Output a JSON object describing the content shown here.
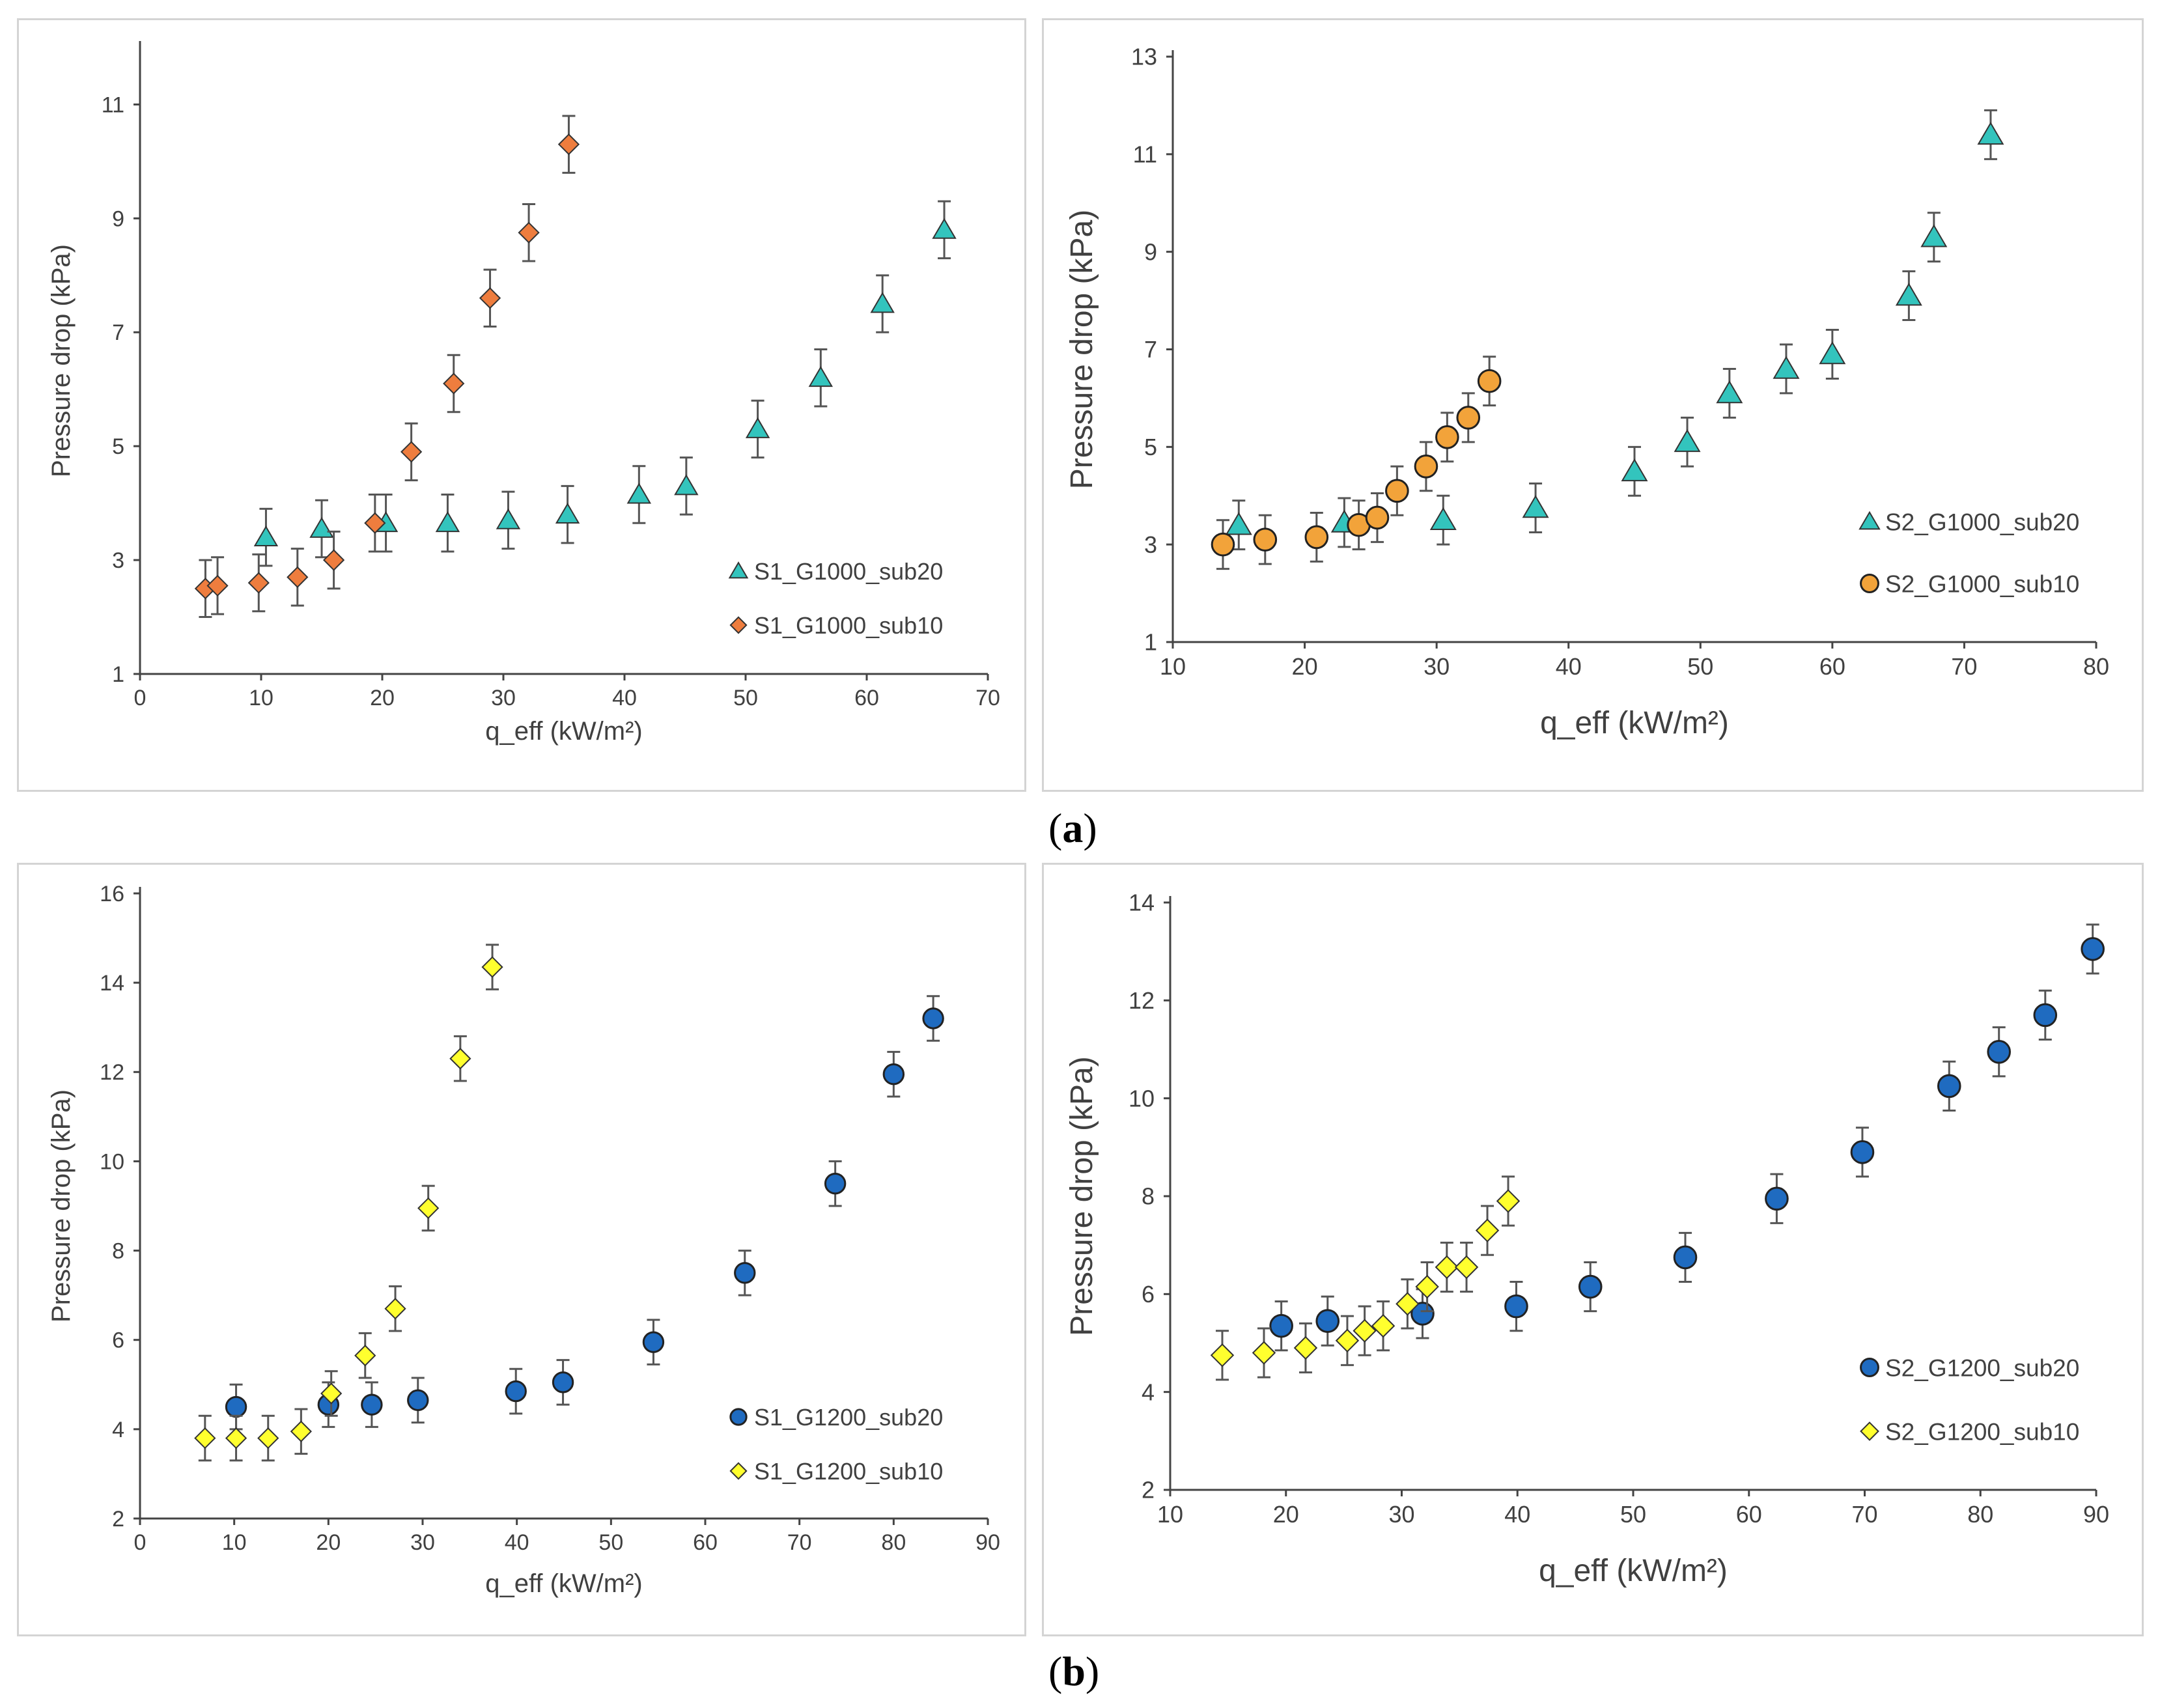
{
  "panel_labels": {
    "a": "a",
    "b": "b"
  },
  "chart_data": [
    {
      "id": "a-left",
      "type": "scatter",
      "title": "",
      "xlabel": "q_eff (kW/m²)",
      "ylabel": "Pressure drop (kPa)",
      "xlim": [
        0,
        70
      ],
      "xticks": [
        0,
        10,
        20,
        30,
        40,
        50,
        60,
        70
      ],
      "ylim": [
        1,
        12
      ],
      "yticks": [
        1,
        3,
        5,
        7,
        9,
        11
      ],
      "legend_position": "bottom-right",
      "series": [
        {
          "name": "S1_G1000_sub20",
          "marker": "triangle",
          "color": "#33c4bd",
          "x": [
            10.4,
            15.0,
            20.3,
            25.4,
            30.4,
            35.3,
            41.2,
            45.1,
            51.0,
            56.2,
            61.3,
            66.4
          ],
          "y": [
            3.4,
            3.55,
            3.65,
            3.65,
            3.7,
            3.8,
            4.15,
            4.3,
            5.3,
            6.2,
            7.5,
            8.8
          ]
        },
        {
          "name": "S1_G1000_sub10",
          "marker": "diamond",
          "color": "#ee7d3e",
          "x": [
            5.4,
            6.4,
            9.8,
            13.0,
            16.0,
            19.4,
            22.4,
            25.9,
            28.9,
            32.1,
            35.4
          ],
          "y": [
            2.5,
            2.55,
            2.6,
            2.7,
            3.0,
            3.65,
            4.9,
            6.1,
            7.6,
            8.75,
            10.3
          ]
        }
      ]
    },
    {
      "id": "a-right",
      "type": "scatter",
      "title": "",
      "xlabel": "q_eff (kW/m²)",
      "ylabel": "Pressure drop (kPa)",
      "xlim": [
        10,
        80
      ],
      "xticks": [
        10,
        20,
        30,
        40,
        50,
        60,
        70,
        80
      ],
      "ylim": [
        1,
        13
      ],
      "yticks": [
        1,
        3,
        5,
        7,
        9,
        11,
        13
      ],
      "legend_position": "bottom-right",
      "series": [
        {
          "name": "S2_G1000_sub20",
          "marker": "triangle",
          "color": "#33c4bd",
          "x": [
            15.0,
            23.0,
            30.5,
            37.5,
            45.0,
            49.0,
            52.2,
            56.5,
            60.0,
            65.8,
            67.7,
            72.0
          ],
          "y": [
            3.4,
            3.45,
            3.5,
            3.75,
            4.5,
            5.1,
            6.1,
            6.6,
            6.9,
            8.1,
            9.3,
            11.4
          ]
        },
        {
          "name": "S2_G1000_sub10",
          "marker": "circle",
          "color": "#f2a33a",
          "x": [
            13.8,
            17.0,
            20.9,
            24.1,
            25.5,
            27.0,
            29.2,
            30.8,
            32.4,
            34.0
          ],
          "y": [
            3.0,
            3.1,
            3.15,
            3.4,
            3.55,
            4.1,
            4.6,
            5.2,
            5.6,
            6.35
          ]
        }
      ]
    },
    {
      "id": "b-left",
      "type": "scatter",
      "title": "",
      "xlabel": "q_eff (kW/m²)",
      "ylabel": "Pressure drop (kPa)",
      "xlim": [
        0,
        90
      ],
      "xticks": [
        0,
        10,
        20,
        30,
        40,
        50,
        60,
        70,
        80,
        90
      ],
      "ylim": [
        2,
        16
      ],
      "yticks": [
        2,
        4,
        6,
        8,
        10,
        12,
        14,
        16
      ],
      "legend_position": "bottom-right",
      "series": [
        {
          "name": "S1_G1200_sub20",
          "marker": "circle",
          "color": "#1f6bc0",
          "x": [
            10.2,
            20.0,
            24.6,
            29.5,
            39.9,
            44.9,
            54.5,
            64.2,
            73.8,
            80.0,
            84.2
          ],
          "y": [
            4.5,
            4.55,
            4.55,
            4.65,
            4.85,
            5.05,
            5.95,
            7.5,
            9.5,
            11.95,
            13.2
          ]
        },
        {
          "name": "S1_G1200_sub10",
          "marker": "diamond",
          "color": "#ffff2e",
          "x": [
            6.9,
            10.2,
            13.6,
            17.1,
            20.3,
            23.9,
            27.1,
            30.6,
            34.0,
            37.4
          ],
          "y": [
            3.8,
            3.8,
            3.8,
            3.95,
            4.8,
            5.65,
            6.7,
            8.95,
            12.3,
            14.35
          ]
        }
      ]
    },
    {
      "id": "b-right",
      "type": "scatter",
      "title": "",
      "xlabel": "q_eff (kW/m²)",
      "ylabel": "Pressure drop (kPa)",
      "xlim": [
        10,
        90
      ],
      "xticks": [
        10,
        20,
        30,
        40,
        50,
        60,
        70,
        80,
        90
      ],
      "ylim": [
        2,
        14
      ],
      "yticks": [
        2,
        4,
        6,
        8,
        10,
        12,
        14
      ],
      "legend_position": "bottom-right",
      "series": [
        {
          "name": "S2_G1200_sub20",
          "marker": "circle",
          "color": "#1f6bc0",
          "x": [
            19.6,
            23.6,
            31.8,
            39.9,
            46.3,
            54.5,
            62.4,
            69.8,
            77.3,
            81.6,
            85.6,
            89.7
          ],
          "y": [
            5.35,
            5.45,
            5.6,
            5.75,
            6.15,
            6.75,
            7.95,
            8.9,
            10.25,
            10.95,
            11.7,
            13.05
          ]
        },
        {
          "name": "S2_G1200_sub10",
          "marker": "diamond",
          "color": "#ffff2e",
          "x": [
            14.5,
            18.1,
            21.7,
            25.3,
            26.8,
            28.4,
            30.5,
            32.2,
            33.9,
            35.6,
            37.4,
            39.2
          ],
          "y": [
            4.75,
            4.8,
            4.9,
            5.05,
            5.25,
            5.35,
            5.8,
            6.15,
            6.55,
            6.55,
            7.3,
            7.9
          ]
        }
      ]
    }
  ]
}
